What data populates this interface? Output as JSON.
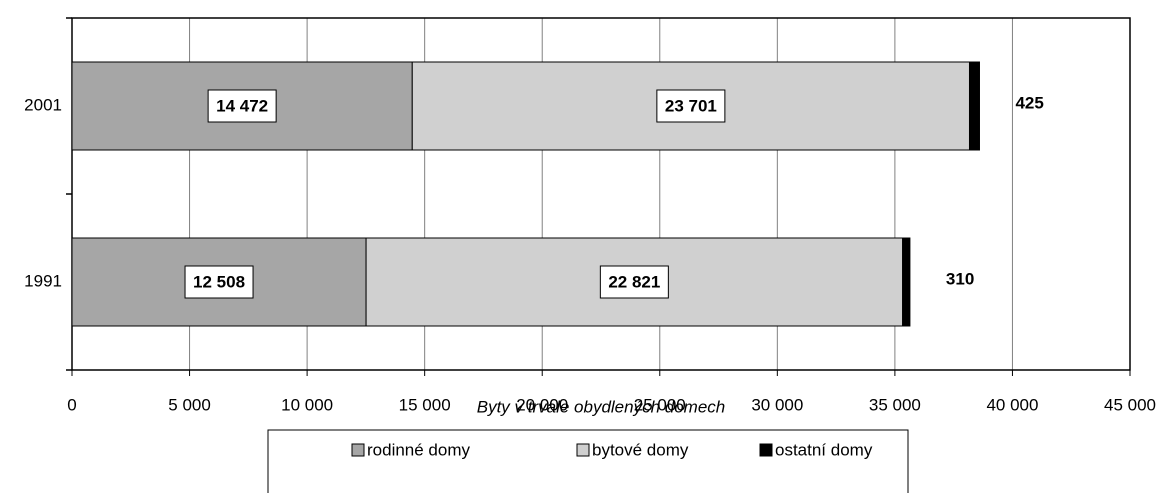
{
  "chart_data": {
    "type": "stacked-barh",
    "x_label": "Byty v trvale obydlených domech",
    "categories": [
      "2001",
      "1991"
    ],
    "series": [
      {
        "name": "rodinné domy",
        "color": "#a6a6a6",
        "values": [
          14472,
          12508
        ],
        "value_labels": [
          "14 472",
          "12 508"
        ]
      },
      {
        "name": "bytové domy",
        "color": "#d0d0d0",
        "values": [
          23701,
          22821
        ],
        "value_labels": [
          "23 701",
          "22 821"
        ]
      },
      {
        "name": "ostatní domy",
        "color": "#000000",
        "values": [
          425,
          310
        ],
        "value_labels": [
          "425",
          "310"
        ]
      }
    ],
    "xlim": [
      0,
      45000
    ],
    "xticks": [
      0,
      {
        "value": 5000,
        "label": "5 000"
      },
      {
        "value": 10000,
        "label": "10 000"
      },
      {
        "value": 15000,
        "label": "15 000"
      },
      {
        "value": 20000,
        "label": "20 000"
      },
      {
        "value": 25000,
        "label": "25 000"
      },
      {
        "value": 30000,
        "label": "30 000"
      },
      {
        "value": 35000,
        "label": "35 000"
      },
      {
        "value": 40000,
        "label": "40 000"
      },
      {
        "value": 45000,
        "label": "45 000"
      }
    ],
    "grid": true,
    "legend": "bottom"
  }
}
